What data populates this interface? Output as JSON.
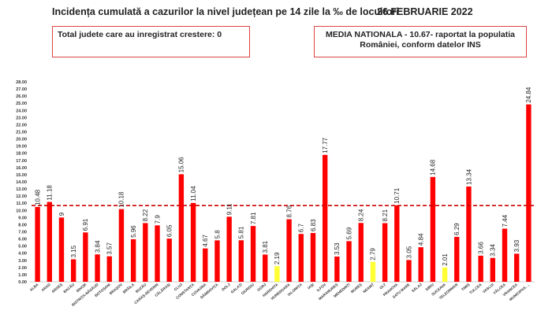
{
  "header": {
    "title": "Incidența cumulată a cazurilor la nivel județean pe 14 zile la ‰ de locuitori",
    "date": "26 FEBRUARIE 2022"
  },
  "info_left": {
    "text": "Total judete care au inregistrat crestere: 0"
  },
  "info_right": {
    "text": "MEDIA NATIONALA - 10.67-  raportat la populatia României, conform datelor INS"
  },
  "colors": {
    "bar_default": "#ff0000",
    "bar_highlight": "#ffff33",
    "reference_line": "#cc0000"
  },
  "chart_data": {
    "type": "bar",
    "title": "Incidența cumulată a cazurilor la nivel județean pe 14 zile la ‰ de locuitori",
    "xlabel": "",
    "ylabel": "",
    "ylim": [
      0,
      28
    ],
    "ytick_step": 1,
    "reference_line": 10.67,
    "grid": false,
    "categories": [
      "ALBA",
      "ARAD",
      "ARGEȘ",
      "BACĂU",
      "BIHOR",
      "BISTRIȚA-NĂSĂUD",
      "BOTOȘANI",
      "BRAȘOV",
      "BRĂILA",
      "BUZĂU",
      "CARAȘ-SEVERIN",
      "CĂLĂRAȘI",
      "CLUJ",
      "CONSTANȚA",
      "COVASNA",
      "DÂMBOVIȚA",
      "DOLJ",
      "GALAȚI",
      "GIURGIU",
      "GORJ",
      "HARGHITA",
      "HUNEDOARA",
      "IALOMIȚA",
      "IAȘI",
      "ILFOV",
      "MARAMUREȘ",
      "MEHEDINȚI",
      "MUREȘ",
      "NEAMȚ",
      "OLT",
      "PRAHOVA",
      "SATU MARE",
      "SĂLAJ",
      "SIBIU",
      "SUCEAVA",
      "TELEORMAN",
      "TIMIȘ",
      "TULCEA",
      "VASLUI",
      "VÂLCEA",
      "VRANCEA",
      "MUNICIPIUL BUCUREȘTI"
    ],
    "values": [
      10.48,
      11.18,
      9,
      3.15,
      6.91,
      3.84,
      3.57,
      10.18,
      5.96,
      8.22,
      7.9,
      6.05,
      15.06,
      11.04,
      4.67,
      5.8,
      9.11,
      5.81,
      7.81,
      3.81,
      2.19,
      8.76,
      6.7,
      6.83,
      17.77,
      3.53,
      5.69,
      8.24,
      2.79,
      8.21,
      10.71,
      3.05,
      4.84,
      14.68,
      2.01,
      6.29,
      13.34,
      3.66,
      3.34,
      7.44,
      3.93,
      24.84
    ],
    "value_labels": [
      "10.48",
      "11.18",
      "9",
      "3.15",
      "6.91",
      "3.84",
      "3.57",
      "10.18",
      "5.96",
      "8.22",
      "7.9",
      "6.05",
      "15.06",
      "11.04",
      "4.67",
      "5.8",
      "9.11",
      "5.81",
      "7.81",
      "3.81",
      "2.19",
      "8.76",
      "6.7",
      "6.83",
      "17.77",
      "3.53",
      "5.69",
      "8.24",
      "2.79",
      "8.21",
      "10.71",
      "3.05",
      "4.84",
      "14.68",
      "2.01",
      "6.29",
      "13.34",
      "3.66",
      "3.34",
      "7.44",
      "3.93",
      "24.84"
    ],
    "tick_labels": [
      "ALBA",
      "ARAD",
      "ARGEȘ",
      "BACĂU",
      "BIHOR",
      "BISTRIȚA-NĂSĂUD",
      "BOTOȘANI",
      "BRAȘOV",
      "BRĂILA",
      "BUZĂU",
      "CARAȘ-SEVERIN",
      "CĂLĂRAȘI",
      "CLUJ",
      "CONSTANȚA",
      "COVASNA",
      "DÂMBOVIȚA",
      "DOLJ",
      "GALAȚI",
      "GIURGIU",
      "GORJ",
      "HARGHITA",
      "HUNEDOARA",
      "IALOMIȚA",
      "IAȘI",
      "ILFOV",
      "MARAMUREȘ",
      "MEHEDINȚI",
      "MUREȘ",
      "NEAMȚ",
      "OLT",
      "PRAHOVA",
      "SATU MARE",
      "SĂLAJ",
      "SIBIU",
      "SUCEAVA",
      "TELEORMAN",
      "TIMIȘ",
      "TULCEA",
      "VASLUI",
      "VÂLCEA",
      "VRANCEA",
      "MUNICIPIUL ..."
    ],
    "highlighted": [
      "HARGHITA",
      "NEAMȚ",
      "SUCEAVA"
    ],
    "ytick_labels": [
      "0.00",
      "1.00",
      "2.00",
      "3.00",
      "4.00",
      "5.00",
      "6.00",
      "7.00",
      "8.00",
      "9.00",
      "10.00",
      "11.00",
      "12.00",
      "13.00",
      "14.00",
      "15.00",
      "16.00",
      "17.00",
      "18.00",
      "19.00",
      "20.00",
      "21.00",
      "22.00",
      "23.00",
      "24.00",
      "25.00",
      "26.00",
      "27.00",
      "28.00"
    ]
  }
}
